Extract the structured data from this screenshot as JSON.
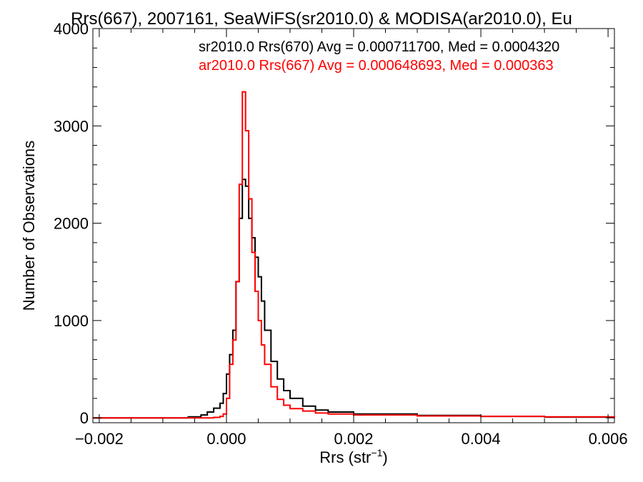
{
  "chart_data": {
    "type": "line",
    "title": "Rrs(667), 2007161, SeaWiFS(sr2010.0) & MODISA(ar2010.0), Eu",
    "xlabel": "Rrs (str",
    "xlabel_sup": "−1",
    "xlabel_end": ")",
    "ylabel": "Number of Observations",
    "xlim": [
      -0.0021,
      0.0061
    ],
    "ylim": [
      -50,
      4000
    ],
    "xticks": [
      -0.002,
      0.0,
      0.002,
      0.004,
      0.006
    ],
    "xtick_labels": [
      "−0.002",
      "0.000",
      "0.002",
      "0.004",
      "0.006"
    ],
    "yticks": [
      0,
      1000,
      2000,
      3000,
      4000
    ],
    "ytick_labels": [
      "0",
      "1000",
      "2000",
      "3000",
      "4000"
    ],
    "grid": false,
    "legend_position": "top-right",
    "series": [
      {
        "name": "sr2010.0 Rrs(670) Avg = 0.000711700, Med = 0.0004320",
        "color": "#000000",
        "x": [
          -0.0021,
          -0.001,
          -0.0006,
          -0.0004,
          -0.0003,
          -0.0002,
          -0.0001,
          -5e-05,
          0.0,
          5e-05,
          0.0001,
          0.00015,
          0.0002,
          0.00025,
          0.0003,
          0.00035,
          0.0004,
          0.00045,
          0.0005,
          0.00055,
          0.0006,
          0.0007,
          0.0008,
          0.0009,
          0.001,
          0.0012,
          0.0014,
          0.0016,
          0.002,
          0.003,
          0.004,
          0.005,
          0.0061
        ],
        "y": [
          0,
          0,
          10,
          30,
          60,
          100,
          150,
          250,
          450,
          650,
          900,
          1400,
          2050,
          2450,
          2380,
          2050,
          1850,
          1650,
          1450,
          1200,
          900,
          580,
          400,
          280,
          200,
          120,
          80,
          60,
          40,
          25,
          15,
          8,
          0
        ]
      },
      {
        "name": "ar2010.0 Rrs(667) Avg = 0.000648693, Med = 0.000363",
        "color": "#ff0000",
        "x": [
          -0.0021,
          -0.0005,
          -0.0002,
          -0.0001,
          -5e-05,
          0.0,
          5e-05,
          0.0001,
          0.00015,
          0.0002,
          0.00025,
          0.0003,
          0.00035,
          0.0004,
          0.00045,
          0.0005,
          0.00055,
          0.0006,
          0.0007,
          0.0008,
          0.0009,
          0.001,
          0.0012,
          0.0014,
          0.0016,
          0.002,
          0.003,
          0.004,
          0.005,
          0.0061
        ],
        "y": [
          0,
          0,
          5,
          15,
          40,
          200,
          550,
          800,
          1400,
          2400,
          3350,
          2950,
          2250,
          1700,
          1300,
          1000,
          750,
          550,
          320,
          190,
          130,
          95,
          70,
          50,
          40,
          30,
          20,
          15,
          10,
          0
        ]
      }
    ]
  }
}
